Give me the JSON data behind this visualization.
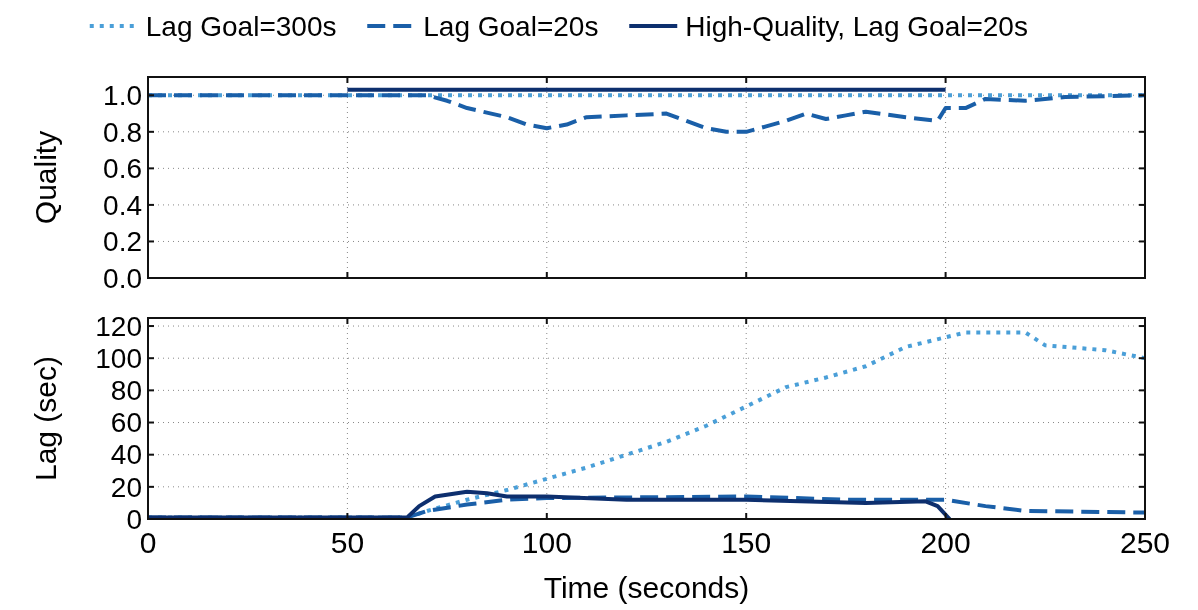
{
  "chart_data": [
    {
      "type": "line",
      "ylabel": "Quality",
      "xlim": [
        0,
        250
      ],
      "xticks": [
        0,
        50,
        100,
        150,
        200,
        250
      ],
      "ylim": [
        0,
        1.1
      ],
      "yticks": [
        {
          "value": 0,
          "label": "0.0"
        },
        {
          "value": 0.2,
          "label": "0.2"
        },
        {
          "value": 0.4,
          "label": "0.4"
        },
        {
          "value": 0.6,
          "label": "0.6"
        },
        {
          "value": 0.8,
          "label": "0.8"
        },
        {
          "value": 1,
          "label": "1.0"
        }
      ],
      "grid": true,
      "legend": "top",
      "tick_labels": "y",
      "series": [
        {
          "name": "Lag Goal=300s",
          "color": "#4a9fd8",
          "line_style": "dotted",
          "x": [
            0,
            250
          ],
          "values": [
            1,
            1
          ]
        },
        {
          "name": "Lag Goal=20s",
          "color": "#1a5fa8",
          "line_style": "dashed",
          "x": [
            0,
            70,
            75,
            80,
            90,
            95,
            100,
            105,
            110,
            120,
            130,
            135,
            140,
            145,
            150,
            155,
            160,
            165,
            170,
            175,
            180,
            190,
            198,
            200,
            205,
            210,
            220,
            230,
            250
          ],
          "values": [
            1,
            1,
            0.97,
            0.93,
            0.88,
            0.84,
            0.82,
            0.84,
            0.88,
            0.89,
            0.9,
            0.86,
            0.82,
            0.8,
            0.8,
            0.83,
            0.86,
            0.9,
            0.87,
            0.89,
            0.91,
            0.88,
            0.86,
            0.93,
            0.93,
            0.98,
            0.97,
            0.99,
            1
          ]
        },
        {
          "name": "High-Quality, Lag Goal=20s",
          "color": "#0d2f6e",
          "line_style": "solid",
          "x": [
            50,
            200
          ],
          "values": [
            1.03,
            1.03
          ]
        }
      ]
    },
    {
      "type": "line",
      "xlabel": "Time (seconds)",
      "ylabel": "Lag (sec)",
      "xlim": [
        0,
        250
      ],
      "xticks": [
        0,
        50,
        100,
        150,
        200,
        250
      ],
      "ylim": [
        0,
        125
      ],
      "yticks": [
        0,
        20,
        40,
        60,
        80,
        100,
        120
      ],
      "grid": true,
      "series": [
        {
          "color": "#4a9fd8",
          "line_style": "dotted",
          "x": [
            0,
            65,
            70,
            80,
            90,
            100,
            110,
            120,
            130,
            140,
            150,
            160,
            170,
            180,
            190,
            200,
            205,
            220,
            225,
            240,
            250
          ],
          "values": [
            1,
            1,
            5,
            12,
            18,
            25,
            32,
            40,
            48,
            58,
            70,
            82,
            88,
            95,
            107,
            113,
            116,
            116,
            108,
            105,
            100
          ]
        },
        {
          "color": "#1a5fa8",
          "line_style": "dashed",
          "x": [
            0,
            65,
            70,
            80,
            90,
            100,
            150,
            175,
            200,
            210,
            220,
            250
          ],
          "values": [
            1,
            1,
            5,
            9,
            12,
            13,
            14,
            12,
            12,
            8,
            5,
            4
          ]
        },
        {
          "color": "#0d2f6e",
          "line_style": "solid",
          "x": [
            0,
            65,
            68,
            72,
            80,
            85,
            90,
            100,
            120,
            150,
            180,
            195,
            198,
            201
          ],
          "values": [
            1,
            1,
            8,
            14,
            17,
            16,
            14,
            14,
            12,
            12,
            10,
            11,
            8,
            0
          ]
        }
      ]
    }
  ]
}
